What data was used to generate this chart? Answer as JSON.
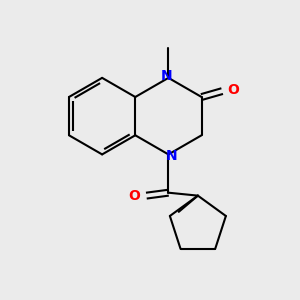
{
  "background_color": "#ebebeb",
  "bond_color": "#000000",
  "N_color": "#0000ff",
  "O_color": "#ff0000",
  "line_width": 1.5,
  "figsize": [
    3.0,
    3.0
  ],
  "dpi": 100,
  "xlim": [
    0,
    10
  ],
  "ylim": [
    0,
    10
  ]
}
